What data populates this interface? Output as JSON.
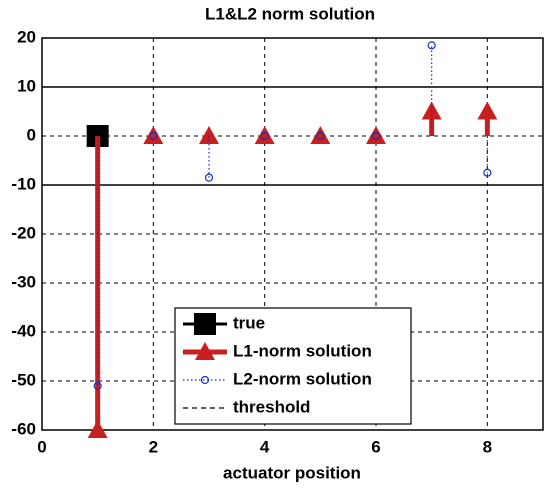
{
  "chart_data": {
    "type": "stem",
    "title": "L1&L2 norm solution",
    "x_label": "actuator position",
    "xlim": [
      0,
      9
    ],
    "xticks": [
      0,
      2,
      4,
      6,
      8
    ],
    "ylim": [
      -60,
      20
    ],
    "yticks": [
      -60,
      -50,
      -40,
      -30,
      -20,
      -10,
      0,
      10,
      20
    ],
    "grid": true,
    "legend": "lower center",
    "series": [
      {
        "name": "true",
        "color": "#000000",
        "marker": "square",
        "line_style": "solid",
        "x": [
          1
        ],
        "values": [
          0
        ]
      },
      {
        "name": "L1-norm solution",
        "color": "#c8201e",
        "marker": "triangle",
        "line_style": "solid",
        "x": [
          1,
          2,
          3,
          4,
          5,
          6,
          7,
          8
        ],
        "values": [
          -60,
          0,
          0,
          0,
          0,
          0,
          5,
          5
        ]
      },
      {
        "name": "L2-norm solution",
        "color": "#1a2fbf",
        "marker": "circle",
        "line_style": "dotted",
        "x": [
          1,
          2,
          3,
          4,
          5,
          6,
          7,
          8
        ],
        "values": [
          -51,
          0,
          -8.5,
          0,
          0,
          0,
          18.5,
          -7.5
        ]
      },
      {
        "name": "threshold",
        "color": "#000000",
        "marker": "none",
        "line_style": "dashed",
        "hline": true,
        "values": [
          10,
          -10
        ]
      }
    ]
  }
}
